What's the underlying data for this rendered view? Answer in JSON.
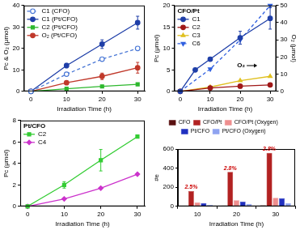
{
  "chart_data": [
    {
      "type": "line",
      "x_label": "Irradiation Time (h)",
      "y_label": "Pc & O₂ (μmol)",
      "x": [
        0,
        10,
        20,
        30
      ],
      "xlim": [
        -2,
        32
      ],
      "xticks": [
        0,
        10,
        20,
        30
      ],
      "ylim": [
        0,
        40
      ],
      "yticks": [
        0,
        10,
        20,
        30,
        40
      ],
      "grid": false,
      "legend": "top-left",
      "series": [
        {
          "name": "C1 (CFO)",
          "color": "#4a78d6",
          "marker": "circle-open",
          "line_style": "dashed",
          "values": [
            0,
            8,
            15,
            20
          ]
        },
        {
          "name": "C1 (Pt/CFO)",
          "color": "#1f3fa8",
          "marker": "circle",
          "line_style": "solid",
          "values": [
            0,
            12,
            22,
            32
          ],
          "errors": [
            null,
            1,
            2,
            3
          ]
        },
        {
          "name": "C2 (Pt/CFO)",
          "color": "#2eb82e",
          "marker": "square",
          "line_style": "solid",
          "values": [
            0,
            1.2,
            2.3,
            3.3
          ]
        },
        {
          "name": "O₂ (Pt/CFO)",
          "color": "#c0392b",
          "marker": "circle",
          "line_style": "solid",
          "values": [
            0,
            4,
            7,
            11
          ],
          "errors": [
            null,
            null,
            1.5,
            2.5
          ]
        }
      ]
    },
    {
      "type": "line",
      "title": "CFO/Pt",
      "x_label": "Irradiation Time (h)",
      "y_label": "Pc (μmol)",
      "y2_label": "O₂ (μmol)",
      "x": [
        0,
        5,
        10,
        20,
        30
      ],
      "xlim": [
        -2,
        32
      ],
      "xticks": [
        0,
        10,
        20,
        30
      ],
      "ylim": [
        0,
        20
      ],
      "yticks": [
        0,
        5,
        10,
        15,
        20
      ],
      "y2lim": [
        0,
        50
      ],
      "y2ticks": [
        0,
        10,
        20,
        30,
        40,
        50
      ],
      "grid": false,
      "legend": "top-left",
      "series": [
        {
          "name": "C1",
          "color": "#1f3fa8",
          "marker": "circle",
          "line_style": "solid",
          "values": [
            0,
            5,
            7.5,
            12.5,
            17
          ],
          "errors": [
            null,
            null,
            null,
            1.5,
            2.5
          ]
        },
        {
          "name": "C2",
          "color": "#a01818",
          "marker": "circle",
          "line_style": "solid",
          "values": [
            0,
            null,
            0.8,
            1.2,
            1.5
          ]
        },
        {
          "name": "C3",
          "color": "#e0c020",
          "marker": "triangle",
          "line_style": "solid",
          "values": [
            0,
            null,
            1,
            2.5,
            3.5
          ]
        },
        {
          "name": "C6",
          "color": "#3060e0",
          "marker": "triangle-down",
          "line_style": "dashed",
          "axis": "y2",
          "values": [
            0,
            null,
            13,
            30,
            50
          ]
        }
      ],
      "annotations": [
        {
          "text": "O₂",
          "x": 19,
          "y": 6
        }
      ]
    },
    {
      "type": "line",
      "title": "Pt/CFO",
      "x_label": "Irradiation Time (h)",
      "y_label": "Pc (μmol)",
      "x": [
        0,
        10,
        20,
        30
      ],
      "xlim": [
        -2,
        32
      ],
      "xticks": [
        0,
        10,
        20,
        30
      ],
      "ylim": [
        0,
        8
      ],
      "yticks": [
        0,
        2,
        4,
        6,
        8
      ],
      "grid": false,
      "legend": "top-left",
      "series": [
        {
          "name": "C2",
          "color": "#33cc33",
          "marker": "square",
          "line_style": "solid",
          "values": [
            0,
            2,
            4.3,
            6.5
          ],
          "errors": [
            null,
            0.3,
            1,
            null
          ]
        },
        {
          "name": "C4",
          "color": "#cc33cc",
          "marker": "diamond",
          "line_style": "solid",
          "values": [
            0,
            0.7,
            1.7,
            3
          ]
        }
      ]
    },
    {
      "type": "bar",
      "x_label": "Irradiation Time (h)",
      "y_label": "#e",
      "categories": [
        "10",
        "20",
        "30"
      ],
      "ylim": [
        0,
        600
      ],
      "yticks": [
        0,
        200,
        400,
        600
      ],
      "grid": false,
      "legend": "top",
      "series": [
        {
          "name": "CFO",
          "color": "#5a1010",
          "values": [
            5,
            8,
            12
          ]
        },
        {
          "name": "CFO/Pt",
          "color": "#b22222",
          "values": [
            160,
            360,
            560
          ]
        },
        {
          "name": "CFO/Pt (Oxygen)",
          "color": "#ee8f8f",
          "values": [
            40,
            65,
            90
          ]
        },
        {
          "name": "Pt/CFO",
          "color": "#2030c0",
          "values": [
            35,
            50,
            85
          ]
        },
        {
          "name": "Pt/CFO (Oxygen)",
          "color": "#8fa3f0",
          "values": [
            15,
            25,
            35
          ]
        }
      ],
      "annotations": [
        {
          "text": "2.5%",
          "series": "CFO/Pt",
          "category": "10",
          "color": "#cc0000"
        },
        {
          "text": "2.8%",
          "series": "CFO/Pt",
          "category": "20",
          "color": "#cc0000"
        },
        {
          "text": "2.8%",
          "series": "CFO/Pt",
          "category": "30",
          "color": "#cc0000"
        }
      ]
    }
  ]
}
